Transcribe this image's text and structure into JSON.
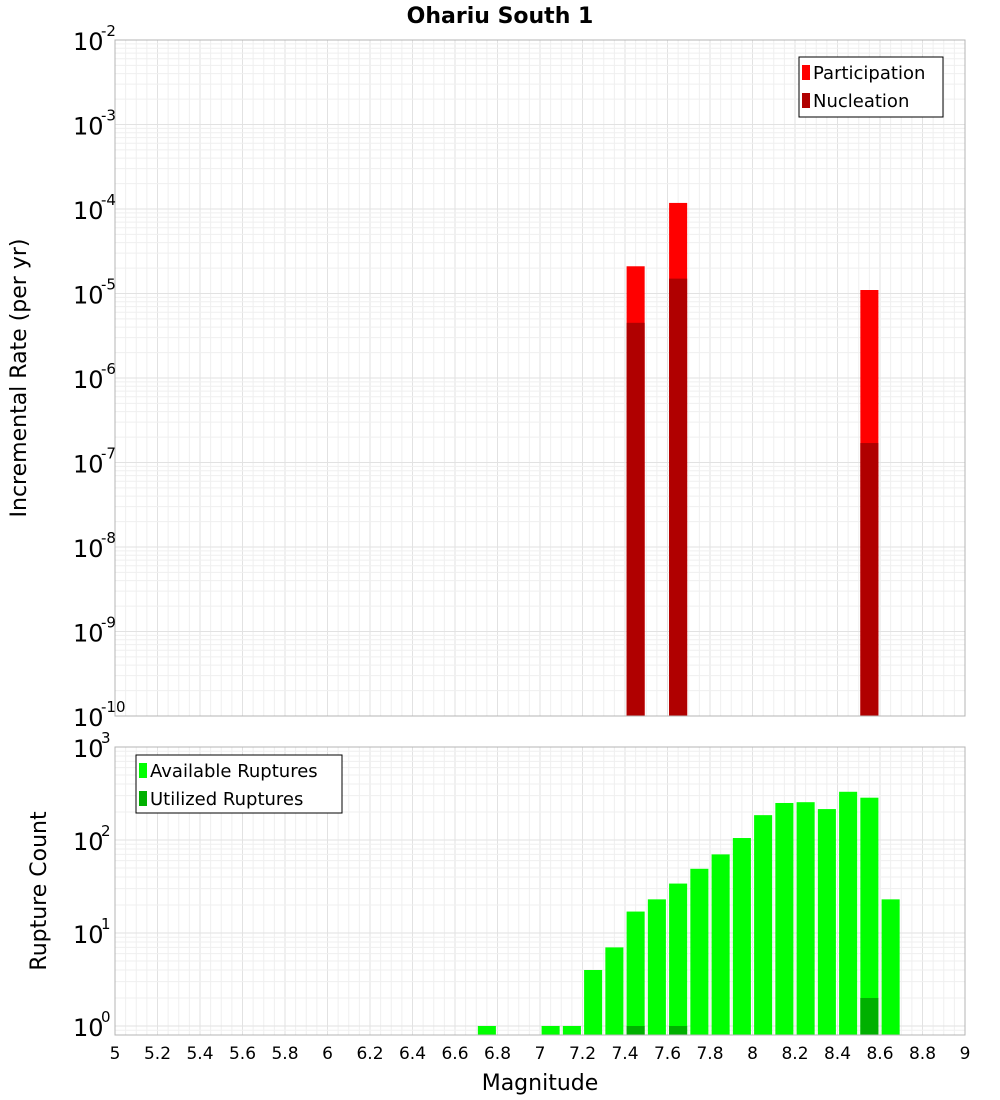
{
  "chart_data": {
    "title": "Ohariu South 1",
    "xlabel": "Magnitude",
    "xlim": [
      5,
      9
    ],
    "x_ticks": [
      "5",
      "5.2",
      "5.4",
      "5.6",
      "5.8",
      "6",
      "6.2",
      "6.4",
      "6.6",
      "6.8",
      "7",
      "7.2",
      "7.4",
      "7.6",
      "7.8",
      "8",
      "8.2",
      "8.4",
      "8.6",
      "8.8",
      "9"
    ],
    "bar_width": 0.085,
    "panels": [
      {
        "id": "rate",
        "type": "bar",
        "yscale": "log",
        "ylabel": "Incremental Rate (per yr)",
        "ylim": [
          1e-10,
          0.01
        ],
        "y_ticks": [
          {
            "base": "10",
            "exp": "-10",
            "value": 1e-10
          },
          {
            "base": "10",
            "exp": "-9",
            "value": 1e-09
          },
          {
            "base": "10",
            "exp": "-8",
            "value": 1e-08
          },
          {
            "base": "10",
            "exp": "-7",
            "value": 1e-07
          },
          {
            "base": "10",
            "exp": "-6",
            "value": 1e-06
          },
          {
            "base": "10",
            "exp": "-5",
            "value": 1e-05
          },
          {
            "base": "10",
            "exp": "-4",
            "value": 0.0001
          },
          {
            "base": "10",
            "exp": "-3",
            "value": 0.001
          },
          {
            "base": "10",
            "exp": "-2",
            "value": 0.01
          }
        ],
        "legend": {
          "position": "top-right",
          "entries": [
            "Participation",
            "Nucleation"
          ]
        },
        "series": [
          {
            "name": "Participation",
            "color": "#ff0000",
            "x": [
              7.45,
              7.65,
              8.55
            ],
            "values": [
              2.1e-05,
              0.000118,
              1.1e-05
            ]
          },
          {
            "name": "Nucleation",
            "color": "#b00000",
            "x": [
              7.45,
              7.65,
              8.55
            ],
            "values": [
              4.5e-06,
              1.5e-05,
              1.7e-07
            ]
          }
        ]
      },
      {
        "id": "count",
        "type": "bar",
        "yscale": "log",
        "ylabel": "Rupture Count",
        "ylim": [
          0.8,
          1000
        ],
        "y_ticks": [
          {
            "base": "10",
            "exp": "0",
            "value": 1
          },
          {
            "base": "10",
            "exp": "1",
            "value": 10
          },
          {
            "base": "10",
            "exp": "2",
            "value": 100
          },
          {
            "base": "10",
            "exp": "3",
            "value": 1000
          }
        ],
        "legend": {
          "position": "top-left",
          "entries": [
            "Available Ruptures",
            "Utilized Ruptures"
          ]
        },
        "series": [
          {
            "name": "Available Ruptures",
            "color": "#00ff00",
            "x": [
              6.75,
              7.05,
              7.15,
              7.25,
              7.35,
              7.45,
              7.55,
              7.65,
              7.75,
              7.85,
              7.95,
              8.05,
              8.15,
              8.25,
              8.35,
              8.45,
              8.55,
              8.65
            ],
            "values": [
              1,
              1,
              1,
              4,
              7,
              17,
              23,
              34,
              49,
              70,
              105,
              185,
              250,
              255,
              215,
              330,
              285,
              23
            ]
          },
          {
            "name": "Utilized Ruptures",
            "color": "#00b000",
            "x": [
              7.45,
              7.65,
              8.55
            ],
            "values": [
              1,
              1,
              2
            ]
          }
        ]
      }
    ]
  }
}
